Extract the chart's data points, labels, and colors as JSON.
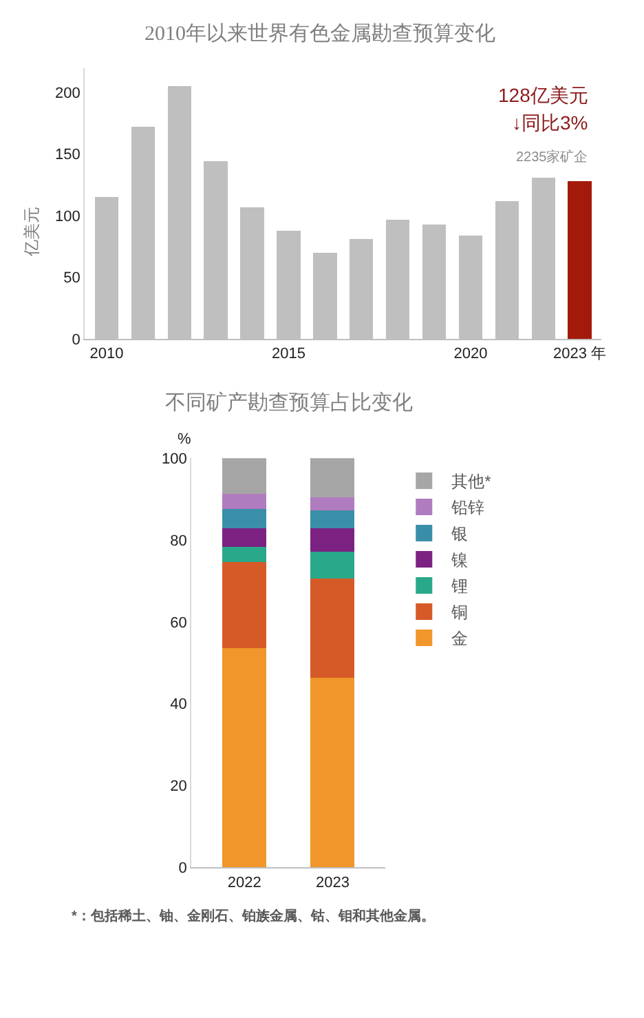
{
  "chart_data": [
    {
      "type": "bar",
      "title": "2010年以来世界有色金属勘查预算变化",
      "ylabel": "亿美元",
      "x": [
        2010,
        2011,
        2012,
        2013,
        2014,
        2015,
        2016,
        2017,
        2018,
        2019,
        2020,
        2021,
        2022,
        2023
      ],
      "values": [
        115,
        172,
        205,
        144,
        107,
        88,
        70,
        81,
        97,
        93,
        84,
        112,
        131,
        128
      ],
      "colors": [
        "#bfbfbf",
        "#bfbfbf",
        "#bfbfbf",
        "#bfbfbf",
        "#bfbfbf",
        "#bfbfbf",
        "#bfbfbf",
        "#bfbfbf",
        "#bfbfbf",
        "#bfbfbf",
        "#bfbfbf",
        "#bfbfbf",
        "#bfbfbf",
        "#a31a0c"
      ],
      "xlim": [
        2009.4,
        2023.6
      ],
      "xticks": [
        2010,
        2015,
        2020,
        {
          "value": 2023,
          "label": "2023 年"
        }
      ],
      "ylim": [
        0,
        220
      ],
      "yticks": [
        0,
        50,
        100,
        150,
        200
      ],
      "annotations": [
        "128亿美元",
        "↓同比3%",
        "2235家矿企"
      ]
    },
    {
      "type": "bar",
      "title": "不同矿产勘查预算占比变化",
      "ylabel": "%",
      "stacked": true,
      "categories": [
        "2022",
        "2023"
      ],
      "series": [
        {
          "name": "金",
          "color": "#f0962a",
          "values": [
            53.5,
            46.3
          ]
        },
        {
          "name": "铜",
          "color": "#d65a27",
          "values": [
            21.1,
            24.3
          ]
        },
        {
          "name": "锂",
          "color": "#2aa88a",
          "values": [
            3.7,
            6.5
          ]
        },
        {
          "name": "镍",
          "color": "#7b2282",
          "values": [
            4.6,
            5.8
          ]
        },
        {
          "name": "银",
          "color": "#3a8fa8",
          "values": [
            4.7,
            4.4
          ]
        },
        {
          "name": "铅锌",
          "color": "#b07cc0",
          "values": [
            3.6,
            3.2
          ]
        },
        {
          "name": "其他*",
          "color": "#a6a6a6",
          "values": [
            8.8,
            9.5
          ]
        }
      ],
      "ylim": [
        0,
        100
      ],
      "yticks": [
        0,
        20,
        40,
        60,
        80,
        100
      ],
      "legend": "right",
      "annotations": [
        "*：包括稀土、铀、金刚石、铂族金属、钴、钼和其他金属。"
      ]
    }
  ]
}
